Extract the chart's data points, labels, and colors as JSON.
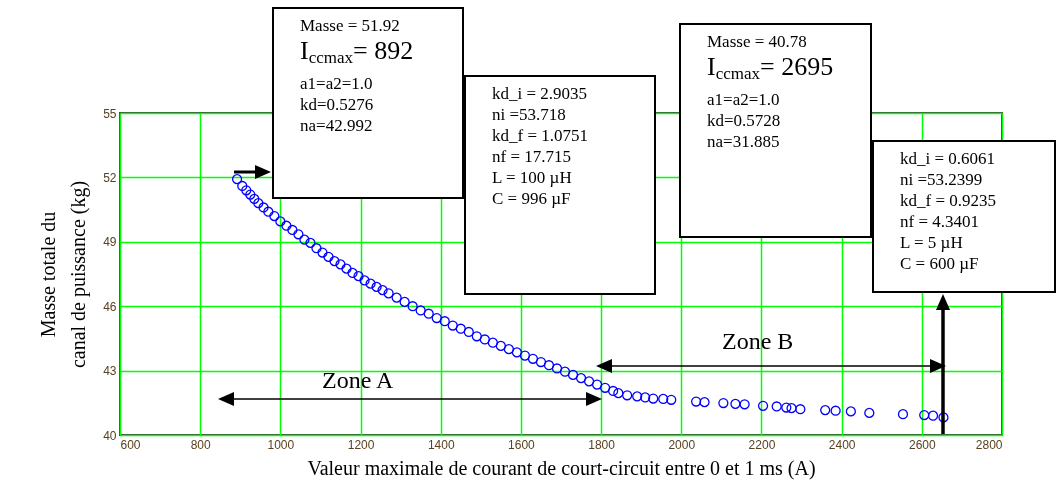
{
  "chart_data": {
    "type": "scatter",
    "xlabel": "Valeur maximale de courant de court-circuit entre 0 et 1 ms (A)",
    "ylabel": "Masse totale du\ncanal de puissance (kg)",
    "xlim": [
      600,
      2800
    ],
    "xticks": [
      600,
      800,
      1000,
      1200,
      1400,
      1600,
      1800,
      2000,
      2200,
      2400,
      2600,
      2800
    ],
    "ylim": [
      40,
      55
    ],
    "yticks": [
      40,
      43,
      46,
      49,
      52,
      55
    ],
    "grid": true,
    "marker": "circle",
    "series": [
      {
        "color": "#0000ff",
        "x": [
          892,
          905,
          915,
          925,
          935,
          945,
          958,
          970,
          985,
          1000,
          1015,
          1030,
          1045,
          1060,
          1075,
          1090,
          1105,
          1120,
          1135,
          1150,
          1165,
          1180,
          1195,
          1210,
          1225,
          1240,
          1255,
          1270,
          1290,
          1310,
          1330,
          1350,
          1370,
          1390,
          1410,
          1430,
          1450,
          1470,
          1490,
          1510,
          1530,
          1550,
          1570,
          1590,
          1610,
          1630,
          1650,
          1670,
          1690,
          1710,
          1730,
          1750,
          1770,
          1790,
          1810,
          1830,
          1843,
          1865,
          1890,
          1910,
          1930,
          1955,
          1975,
          2037,
          2058,
          2105,
          2135,
          2158,
          2204,
          2238,
          2262,
          2275,
          2297,
          2359,
          2385,
          2423,
          2469,
          2553,
          2606,
          2628,
          2654
        ],
        "values": [
          51.92,
          51.6,
          51.4,
          51.2,
          51.0,
          50.8,
          50.6,
          50.4,
          50.2,
          49.95,
          49.75,
          49.55,
          49.35,
          49.1,
          48.95,
          48.7,
          48.5,
          48.3,
          48.1,
          47.95,
          47.75,
          47.55,
          47.4,
          47.2,
          47.05,
          46.9,
          46.75,
          46.6,
          46.4,
          46.2,
          46.0,
          45.8,
          45.65,
          45.45,
          45.3,
          45.1,
          44.95,
          44.8,
          44.6,
          44.45,
          44.3,
          44.15,
          44.0,
          43.85,
          43.7,
          43.55,
          43.4,
          43.25,
          43.1,
          42.95,
          42.8,
          42.65,
          42.5,
          42.35,
          42.2,
          42.05,
          41.95,
          41.85,
          41.8,
          41.75,
          41.7,
          41.68,
          41.64,
          41.56,
          41.53,
          41.49,
          41.45,
          41.43,
          41.36,
          41.33,
          41.28,
          41.25,
          41.2,
          41.16,
          41.13,
          41.1,
          41.03,
          40.97,
          40.93,
          40.9,
          40.82
        ]
      }
    ],
    "annotations": [
      "Masse = 51.92\nI$_{ccmax}$= 892\na1=a2=1.0\nkd=0.5276\nna=42.992",
      "kd_i = 2.9035\nni =53.718\nkd_f = 1.0751\nnf = 17.715\nL = 100 µH\nC = 996 µF",
      "Masse = 40.78\nI$_{ccmax}$= 2695\na1=a2=1.0\nkd=0.5728\nna=31.885",
      "kd_i = 0.6061\nni =53.2399\nkd_f = 0.9235\nnf = 4.3401\nL = 5 µH\nC = 600 µF",
      "Zone A",
      "Zone B"
    ]
  }
}
